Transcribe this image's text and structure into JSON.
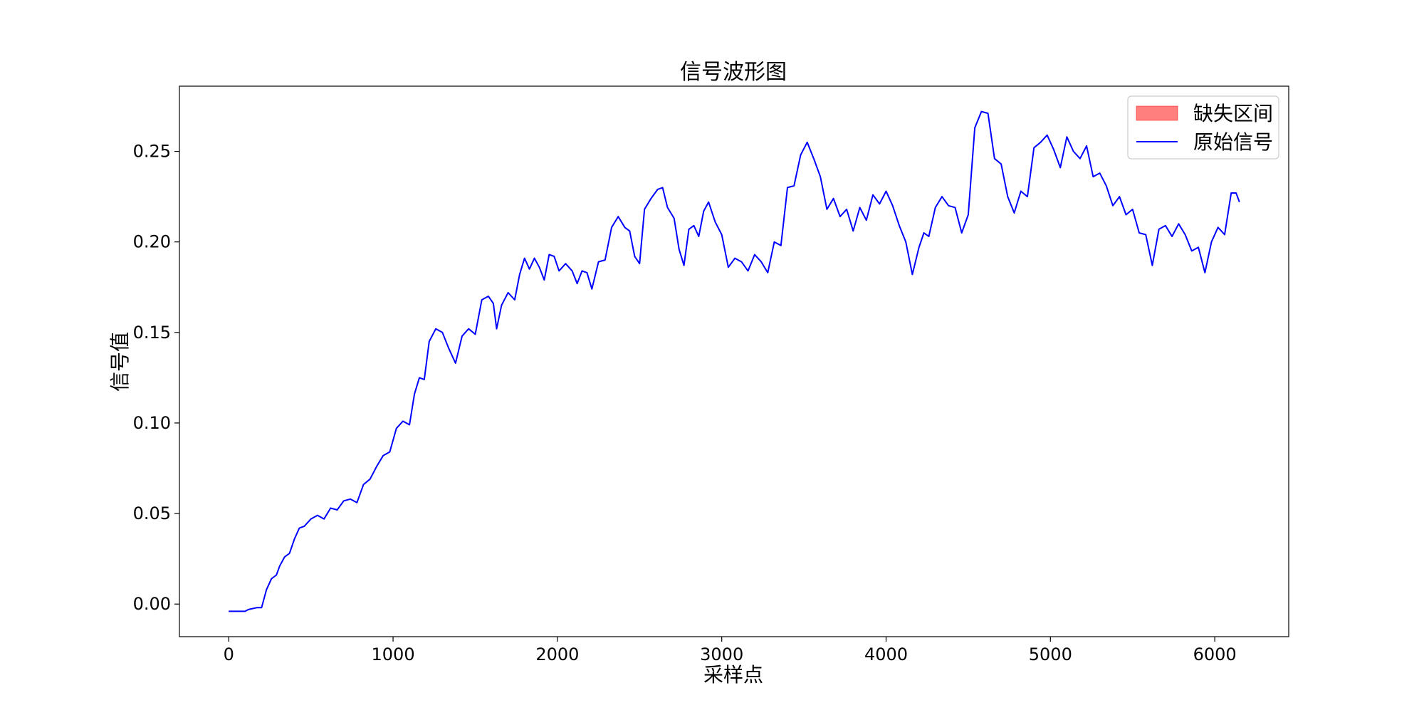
{
  "chart_data": {
    "type": "line",
    "title": "信号波形图",
    "xlabel": "采样点",
    "ylabel": "信号值",
    "xlim": [
      -300,
      6450
    ],
    "ylim": [
      -0.018,
      0.286
    ],
    "x_ticks": [
      0,
      1000,
      2000,
      3000,
      4000,
      5000,
      6000
    ],
    "x_tick_labels": [
      "0",
      "1000",
      "2000",
      "3000",
      "4000",
      "5000",
      "6000"
    ],
    "y_ticks": [
      0.0,
      0.05,
      0.1,
      0.15,
      0.2,
      0.25
    ],
    "y_tick_labels": [
      "0.00",
      "0.05",
      "0.10",
      "0.15",
      "0.20",
      "0.25"
    ],
    "grid": false,
    "legend": {
      "position": "top-right",
      "entries": [
        {
          "label": "缺失区间",
          "kind": "patch",
          "color": "#ff0000",
          "alpha": 0.5
        },
        {
          "label": "原始信号",
          "kind": "line",
          "color": "#0000ff"
        }
      ]
    },
    "series": [
      {
        "name": "原始信号",
        "color": "#0000ff",
        "x": [
          0,
          100,
          120,
          170,
          200,
          230,
          260,
          290,
          310,
          340,
          370,
          400,
          430,
          460,
          500,
          540,
          580,
          620,
          660,
          700,
          740,
          780,
          820,
          860,
          900,
          940,
          980,
          1020,
          1060,
          1100,
          1130,
          1160,
          1190,
          1220,
          1260,
          1300,
          1340,
          1380,
          1420,
          1460,
          1500,
          1540,
          1580,
          1610,
          1630,
          1660,
          1700,
          1740,
          1770,
          1800,
          1830,
          1860,
          1890,
          1920,
          1950,
          1980,
          2010,
          2050,
          2090,
          2120,
          2150,
          2180,
          2210,
          2250,
          2290,
          2330,
          2370,
          2410,
          2440,
          2470,
          2500,
          2530,
          2570,
          2610,
          2640,
          2670,
          2710,
          2740,
          2770,
          2800,
          2830,
          2860,
          2890,
          2920,
          2960,
          3000,
          3040,
          3080,
          3120,
          3160,
          3200,
          3240,
          3280,
          3320,
          3360,
          3400,
          3440,
          3480,
          3520,
          3560,
          3600,
          3640,
          3680,
          3720,
          3760,
          3800,
          3840,
          3880,
          3920,
          3960,
          4000,
          4040,
          4080,
          4120,
          4160,
          4200,
          4230,
          4260,
          4300,
          4340,
          4380,
          4420,
          4460,
          4500,
          4540,
          4580,
          4620,
          4660,
          4700,
          4740,
          4780,
          4820,
          4860,
          4900,
          4940,
          4980,
          5020,
          5060,
          5100,
          5140,
          5180,
          5220,
          5260,
          5300,
          5340,
          5380,
          5420,
          5460,
          5500,
          5540,
          5580,
          5620,
          5660,
          5700,
          5740,
          5780,
          5820,
          5860,
          5900,
          5940,
          5980,
          6020,
          6060,
          6100,
          6130,
          6150
        ],
        "y": [
          -0.004,
          -0.004,
          -0.003,
          -0.002,
          -0.002,
          0.008,
          0.014,
          0.016,
          0.021,
          0.026,
          0.028,
          0.036,
          0.042,
          0.043,
          0.047,
          0.049,
          0.047,
          0.053,
          0.052,
          0.057,
          0.058,
          0.056,
          0.066,
          0.069,
          0.076,
          0.082,
          0.084,
          0.097,
          0.101,
          0.099,
          0.116,
          0.125,
          0.124,
          0.145,
          0.152,
          0.15,
          0.141,
          0.133,
          0.148,
          0.152,
          0.149,
          0.168,
          0.17,
          0.166,
          0.152,
          0.165,
          0.172,
          0.168,
          0.182,
          0.191,
          0.185,
          0.191,
          0.186,
          0.179,
          0.193,
          0.192,
          0.184,
          0.188,
          0.184,
          0.177,
          0.184,
          0.183,
          0.174,
          0.189,
          0.19,
          0.208,
          0.214,
          0.208,
          0.206,
          0.192,
          0.188,
          0.218,
          0.224,
          0.229,
          0.23,
          0.219,
          0.213,
          0.196,
          0.187,
          0.207,
          0.209,
          0.203,
          0.217,
          0.222,
          0.211,
          0.204,
          0.186,
          0.191,
          0.189,
          0.184,
          0.193,
          0.189,
          0.183,
          0.2,
          0.198,
          0.23,
          0.231,
          0.248,
          0.255,
          0.246,
          0.236,
          0.218,
          0.224,
          0.214,
          0.218,
          0.206,
          0.219,
          0.212,
          0.226,
          0.221,
          0.228,
          0.22,
          0.209,
          0.2,
          0.182,
          0.197,
          0.205,
          0.203,
          0.219,
          0.225,
          0.22,
          0.219,
          0.205,
          0.215,
          0.263,
          0.272,
          0.271,
          0.246,
          0.243,
          0.225,
          0.216,
          0.228,
          0.225,
          0.252,
          0.255,
          0.259,
          0.251,
          0.241,
          0.258,
          0.25,
          0.246,
          0.253,
          0.236,
          0.238,
          0.231,
          0.22,
          0.225,
          0.215,
          0.218,
          0.205,
          0.204,
          0.187,
          0.207,
          0.209,
          0.203,
          0.21,
          0.204,
          0.195,
          0.197,
          0.183,
          0.2,
          0.208,
          0.204,
          0.227,
          0.227,
          0.222
        ]
      }
    ]
  }
}
